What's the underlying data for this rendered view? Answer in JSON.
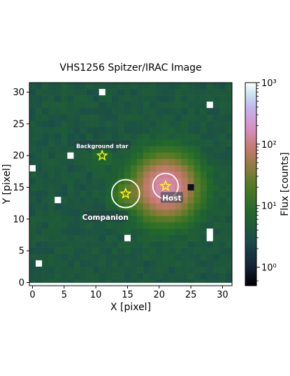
{
  "chart_data": {
    "type": "heatmap",
    "title": "VHS1256 Spitzer/IRAC Image",
    "xlabel": "X [pixel]",
    "ylabel": "Y [pixel]",
    "xlim": [
      -0.5,
      31.5
    ],
    "ylim": [
      -0.5,
      31.5
    ],
    "x_ticks": [
      0,
      5,
      10,
      15,
      20,
      25,
      30
    ],
    "y_ticks": [
      0,
      5,
      10,
      15,
      20,
      25,
      30
    ],
    "grid": false,
    "colorbar": {
      "label": "Flux [counts]",
      "scale": "log",
      "range": [
        0.5,
        1000
      ],
      "ticks": [
        {
          "value": 1,
          "label": "10⁰"
        },
        {
          "value": 10,
          "label": "10¹"
        },
        {
          "value": 100,
          "label": "10²"
        },
        {
          "value": 1000,
          "label": "10³"
        }
      ]
    },
    "background_level": 4,
    "sources": [
      {
        "name": "Host",
        "x": 21,
        "y": 15,
        "peak": 150,
        "sigma": 2.4
      },
      {
        "name": "Companion",
        "x": 14.7,
        "y": 14,
        "peak": 18,
        "sigma": 1.2
      },
      {
        "name": "Background star",
        "x": 11,
        "y": 20,
        "peak": 5,
        "sigma": 1.0
      }
    ],
    "bad_pixels": [
      [
        11,
        30
      ],
      [
        28,
        28
      ],
      [
        6,
        20
      ],
      [
        0,
        18
      ],
      [
        4,
        13
      ],
      [
        15,
        7
      ],
      [
        28,
        8
      ],
      [
        28,
        7
      ],
      [
        1,
        3
      ],
      [
        25,
        15
      ]
    ],
    "annotations": [
      {
        "text": "Background star",
        "x": 11,
        "y": 21.5
      },
      {
        "text": "Companion",
        "x": 11.5,
        "y": 10.3
      },
      {
        "text": "Host",
        "x": 22,
        "y": 13.3
      }
    ],
    "markers": [
      {
        "type": "star",
        "x": 11,
        "y": 20,
        "color": "#ffff00"
      },
      {
        "type": "star",
        "x": 14.7,
        "y": 14,
        "color": "#ffff00"
      },
      {
        "type": "star",
        "x": 21,
        "y": 15.2,
        "color": "#ffff00"
      }
    ],
    "circles": [
      {
        "x": 14.7,
        "y": 14,
        "r": 2.2,
        "color": "#ffffff"
      },
      {
        "x": 21,
        "y": 15.2,
        "r": 2.0,
        "color": "#ffffff"
      }
    ]
  }
}
